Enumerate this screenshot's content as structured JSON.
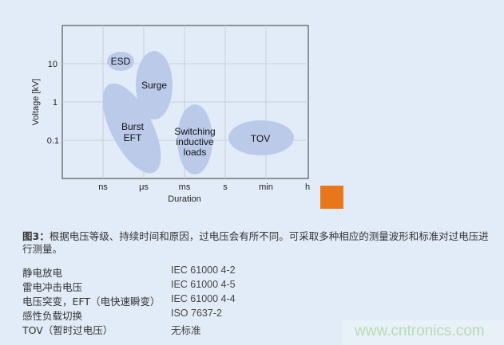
{
  "diagram": {
    "y_axis_label": "Voltage [kV]",
    "x_axis_label": "Duration",
    "y_ticks": [
      "10",
      "1",
      "0.1"
    ],
    "x_ticks": [
      "ns",
      "μs",
      "ms",
      "s",
      "min",
      "h"
    ],
    "region_color": "#bccaea",
    "regions": [
      {
        "id": "esd",
        "lines": [
          "ESD"
        ]
      },
      {
        "id": "surge",
        "lines": [
          "Surge"
        ]
      },
      {
        "id": "burst",
        "lines": [
          "Burst",
          "EFT"
        ]
      },
      {
        "id": "switching",
        "lines": [
          "Switching",
          "inductive",
          "loads"
        ]
      },
      {
        "id": "tov",
        "lines": [
          "TOV"
        ]
      }
    ]
  },
  "accent_color": "#e8761a",
  "caption": {
    "prefix": "图3：",
    "text": "根据电压等级、持续时间和原因，过电压会有所不同。可采取多种相应的测量波形和标准对过电压进行测量。"
  },
  "standards": [
    {
      "name": "静电放电",
      "standard": "IEC 61000 4-2"
    },
    {
      "name": "雷电冲击电压",
      "standard": "IEC 61000 4-5"
    },
    {
      "name": "电压突变，EFT（电快速瞬变）",
      "standard": "IEC 61000 4-4"
    },
    {
      "name": "感性负载切换",
      "standard": "ISO 7637-2"
    },
    {
      "name": "TOV（暂时过电压）",
      "standard": "无标准"
    }
  ],
  "watermark": "www.cntronics.com"
}
